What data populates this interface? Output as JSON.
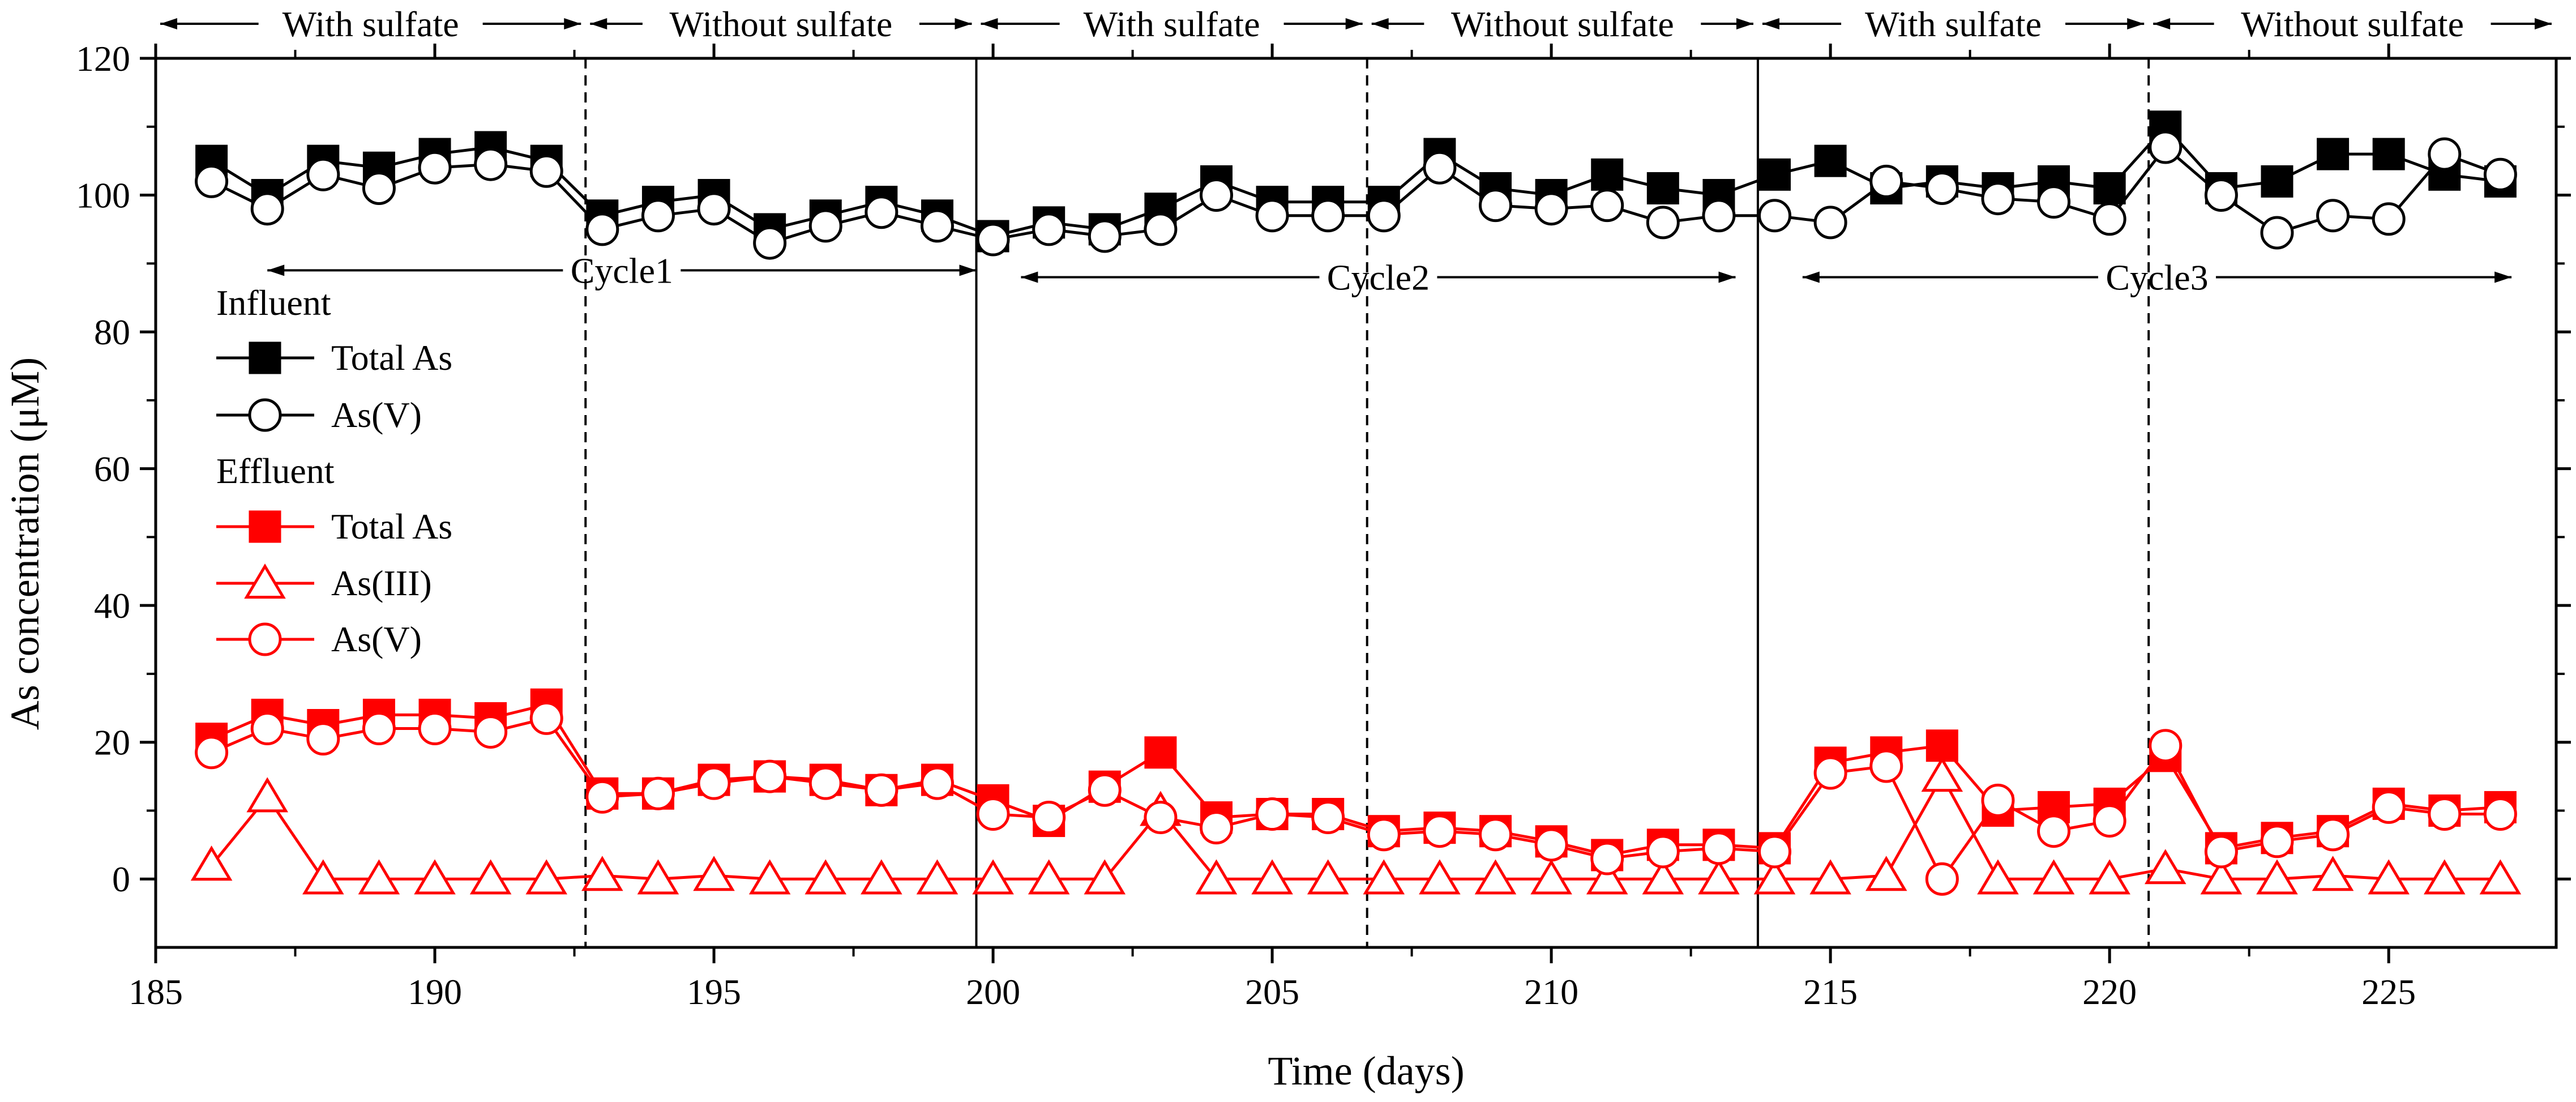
{
  "chart_data": {
    "type": "line",
    "xlabel": "Time (days)",
    "ylabel": "As concentration (μM)",
    "xlim": [
      185,
      228
    ],
    "ylim": [
      -10,
      120
    ],
    "x_ticks": [
      185,
      190,
      195,
      200,
      205,
      210,
      215,
      220,
      225
    ],
    "y_ticks": [
      0,
      20,
      40,
      60,
      80,
      100,
      120
    ],
    "solid_dividers": [
      199.7,
      213.7
    ],
    "dashed_dividers": [
      192.7,
      206.7,
      220.7
    ],
    "phases": [
      {
        "label": "With sulfate",
        "start": 185,
        "end": 192.7
      },
      {
        "label": "Without sulfate",
        "start": 192.7,
        "end": 199.7
      },
      {
        "label": "With sulfate",
        "start": 199.7,
        "end": 206.7
      },
      {
        "label": "Without sulfate",
        "start": 206.7,
        "end": 213.7
      },
      {
        "label": "With sulfate",
        "start": 213.7,
        "end": 220.7
      },
      {
        "label": "Without sulfate",
        "start": 220.7,
        "end": 228
      }
    ],
    "cycles": [
      {
        "label": "Cycle1",
        "start": 187,
        "end": 199.7,
        "y": 89
      },
      {
        "label": "Cycle2",
        "start": 200.5,
        "end": 213.3,
        "y": 88
      },
      {
        "label": "Cycle3",
        "start": 214.5,
        "end": 227.2,
        "y": 88
      }
    ],
    "legend": {
      "group_titles": [
        "Influent",
        "Effluent"
      ],
      "entries": [
        "Total As",
        "As(V)",
        "Total As",
        "As(III)",
        "As(V)"
      ]
    },
    "series": [
      {
        "name": "Influent Total As",
        "group": "Influent",
        "color": "#000000",
        "marker": "square-filled",
        "x": [
          186,
          187,
          188,
          189,
          190,
          191,
          192,
          193,
          194,
          195,
          196,
          197,
          198,
          199,
          200,
          201,
          202,
          203,
          204,
          205,
          206,
          207,
          208,
          209,
          210,
          211,
          212,
          213,
          214,
          215,
          216,
          217,
          218,
          219,
          220,
          221,
          222,
          223,
          224,
          225,
          226,
          227
        ],
        "values": [
          105,
          100,
          105,
          104,
          106,
          107,
          105,
          97,
          99,
          100,
          95,
          97,
          99,
          97,
          94,
          96,
          95,
          98,
          102,
          99,
          99,
          99,
          106,
          101,
          100,
          103,
          101,
          100,
          103,
          105,
          101,
          102,
          101,
          102,
          101,
          110,
          101,
          102,
          106,
          106,
          103,
          102
        ]
      },
      {
        "name": "Influent As(V)",
        "group": "Influent",
        "color": "#000000",
        "marker": "circle-open",
        "x": [
          186,
          187,
          188,
          189,
          190,
          191,
          192,
          193,
          194,
          195,
          196,
          197,
          198,
          199,
          200,
          201,
          202,
          203,
          204,
          205,
          206,
          207,
          208,
          209,
          210,
          211,
          212,
          213,
          214,
          215,
          216,
          217,
          218,
          219,
          220,
          221,
          222,
          223,
          224,
          225,
          226,
          227
        ],
        "values": [
          102,
          98,
          103,
          101,
          104,
          104.5,
          103.5,
          95,
          97,
          98,
          93,
          95.5,
          97.5,
          95.5,
          93.5,
          95,
          94,
          95,
          100,
          97,
          97,
          97,
          104,
          98.5,
          98,
          98.5,
          96,
          97,
          97,
          96,
          102,
          101,
          99.5,
          99,
          96.5,
          107,
          100,
          94.5,
          97,
          96.5,
          106,
          103
        ]
      },
      {
        "name": "Effluent Total As",
        "group": "Effluent",
        "color": "#ff0000",
        "marker": "square-filled",
        "x": [
          186,
          187,
          188,
          189,
          190,
          191,
          192,
          193,
          194,
          195,
          196,
          197,
          198,
          199,
          200,
          201,
          202,
          203,
          204,
          205,
          206,
          207,
          208,
          209,
          210,
          211,
          212,
          213,
          214,
          215,
          216,
          217,
          218,
          219,
          220,
          221,
          222,
          223,
          224,
          225,
          226,
          227
        ],
        "values": [
          20.5,
          24,
          22.5,
          24,
          24,
          23.5,
          25.5,
          12.5,
          12.5,
          14.5,
          15,
          14.5,
          13,
          14.5,
          11.5,
          8.5,
          13.5,
          18.5,
          9,
          9.5,
          9.5,
          7,
          7.5,
          7,
          5.5,
          3.5,
          5,
          5,
          4.5,
          17,
          18.5,
          19.5,
          10,
          10.5,
          11,
          18,
          4.5,
          6,
          7,
          11,
          10,
          10.5
        ]
      },
      {
        "name": "Effluent As(III)",
        "group": "Effluent",
        "color": "#ff0000",
        "marker": "triangle-open",
        "x": [
          186,
          187,
          188,
          189,
          190,
          191,
          192,
          193,
          194,
          195,
          196,
          197,
          198,
          199,
          200,
          201,
          202,
          203,
          204,
          205,
          206,
          207,
          208,
          209,
          210,
          211,
          212,
          213,
          214,
          215,
          216,
          217,
          218,
          219,
          220,
          221,
          222,
          223,
          224,
          225,
          226,
          227
        ],
        "values": [
          2,
          12,
          0,
          0,
          0,
          0,
          0,
          0.5,
          0,
          0.5,
          0,
          0,
          0,
          0,
          0,
          0,
          0,
          10,
          0,
          0,
          0,
          0,
          0,
          0,
          0,
          0,
          0,
          0,
          0,
          0,
          0.5,
          15,
          0,
          0,
          0,
          1.5,
          0,
          0,
          0.5,
          0,
          0,
          0
        ]
      },
      {
        "name": "Effluent As(V)",
        "group": "Effluent",
        "color": "#ff0000",
        "marker": "circle-open",
        "x": [
          186,
          187,
          188,
          189,
          190,
          191,
          192,
          193,
          194,
          195,
          196,
          197,
          198,
          199,
          200,
          201,
          202,
          203,
          204,
          205,
          206,
          207,
          208,
          209,
          210,
          211,
          212,
          213,
          214,
          215,
          216,
          217,
          218,
          219,
          220,
          221,
          222,
          223,
          224,
          225,
          226,
          227
        ],
        "values": [
          18.5,
          22,
          20.5,
          22,
          22,
          21.5,
          23.5,
          12,
          12.5,
          14,
          15,
          14,
          13,
          14,
          9.5,
          9,
          13,
          9,
          7.5,
          9.5,
          9,
          6.5,
          7,
          6.5,
          5,
          3,
          4,
          4.5,
          4,
          15.5,
          16.5,
          0,
          11.5,
          7,
          8.5,
          19.5,
          4,
          5.5,
          6.5,
          10.5,
          9.5,
          9.5
        ]
      }
    ]
  }
}
